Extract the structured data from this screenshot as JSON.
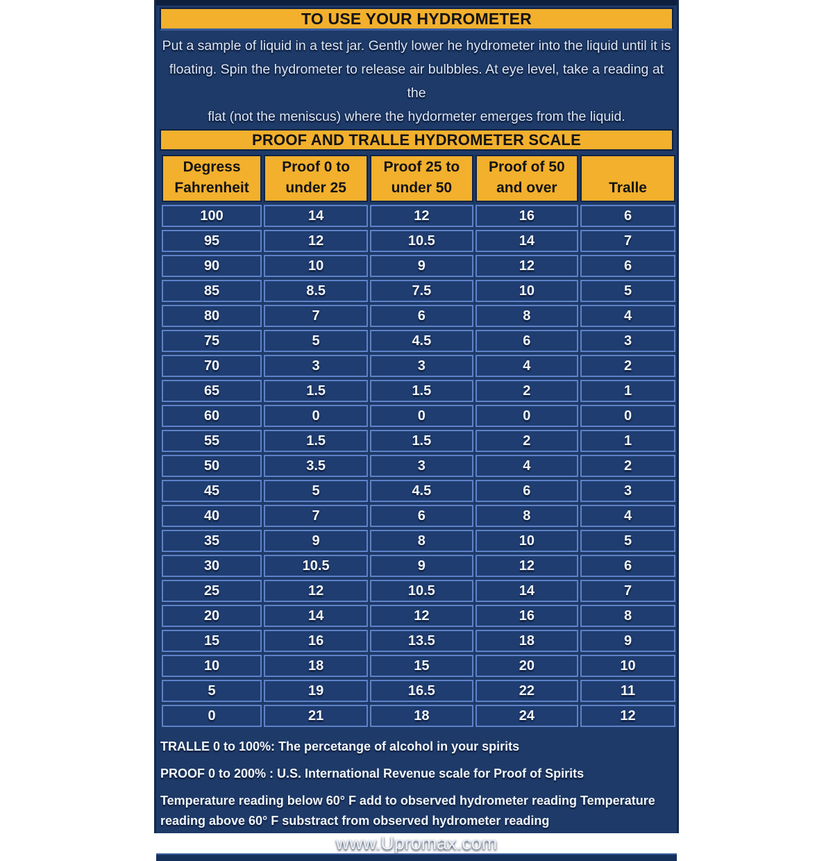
{
  "colors": {
    "panel_bg": "#1E3A68",
    "banner_yellow": "#F2B02D",
    "grid_blue": "#5E82C8",
    "border_navy": "#0F2142",
    "text_light": "#DCE7F6"
  },
  "usage": {
    "title": "TO USE YOUR HYDROMETER",
    "lines": [
      "Put a sample of liquid in a test jar. Gently lower he hydrometer into the liquid until it is",
      "floating. Spin the hydrometer to release air bulbbles. At eye level, take a reading at the",
      "flat (not the meniscus) where the hydormeter emerges from the liquid."
    ]
  },
  "scale": {
    "title": "PROOF AND TRALLE HYDROMETER SCALE",
    "headers": [
      [
        "Degress",
        "Fahrenheit"
      ],
      [
        "Proof 0 to",
        "under 25"
      ],
      [
        "Proof 25 to",
        "under 50"
      ],
      [
        "Proof of 50",
        "and over"
      ],
      [
        "",
        "Tralle"
      ]
    ],
    "rows": [
      [
        "100",
        "14",
        "12",
        "16",
        "6"
      ],
      [
        "95",
        "12",
        "10.5",
        "14",
        "7"
      ],
      [
        "90",
        "10",
        "9",
        "12",
        "6"
      ],
      [
        "85",
        "8.5",
        "7.5",
        "10",
        "5"
      ],
      [
        "80",
        "7",
        "6",
        "8",
        "4"
      ],
      [
        "75",
        "5",
        "4.5",
        "6",
        "3"
      ],
      [
        "70",
        "3",
        "3",
        "4",
        "2"
      ],
      [
        "65",
        "1.5",
        "1.5",
        "2",
        "1"
      ],
      [
        "60",
        "0",
        "0",
        "0",
        "0"
      ],
      [
        "55",
        "1.5",
        "1.5",
        "2",
        "1"
      ],
      [
        "50",
        "3.5",
        "3",
        "4",
        "2"
      ],
      [
        "45",
        "5",
        "4.5",
        "6",
        "3"
      ],
      [
        "40",
        "7",
        "6",
        "8",
        "4"
      ],
      [
        "35",
        "9",
        "8",
        "10",
        "5"
      ],
      [
        "30",
        "10.5",
        "9",
        "12",
        "6"
      ],
      [
        "25",
        "12",
        "10.5",
        "14",
        "7"
      ],
      [
        "20",
        "14",
        "12",
        "16",
        "8"
      ],
      [
        "15",
        "16",
        "13.5",
        "18",
        "9"
      ],
      [
        "10",
        "18",
        "15",
        "20",
        "10"
      ],
      [
        "5",
        "19",
        "16.5",
        "22",
        "11"
      ],
      [
        "0",
        "21",
        "18",
        "24",
        "12"
      ]
    ]
  },
  "notes": {
    "tralle": "TRALLE 0 to 100%: The percetange of alcohol in your spirits",
    "proof": "PROOF 0 to 200% :  U.S. International Revenue scale for Proof of Spirits",
    "temperature": "Temperature reading below 60° F add to observed hydrometer reading Temperature reading above 60° F substract from observed hydrometer reading"
  },
  "website": "www.Upromax.com"
}
